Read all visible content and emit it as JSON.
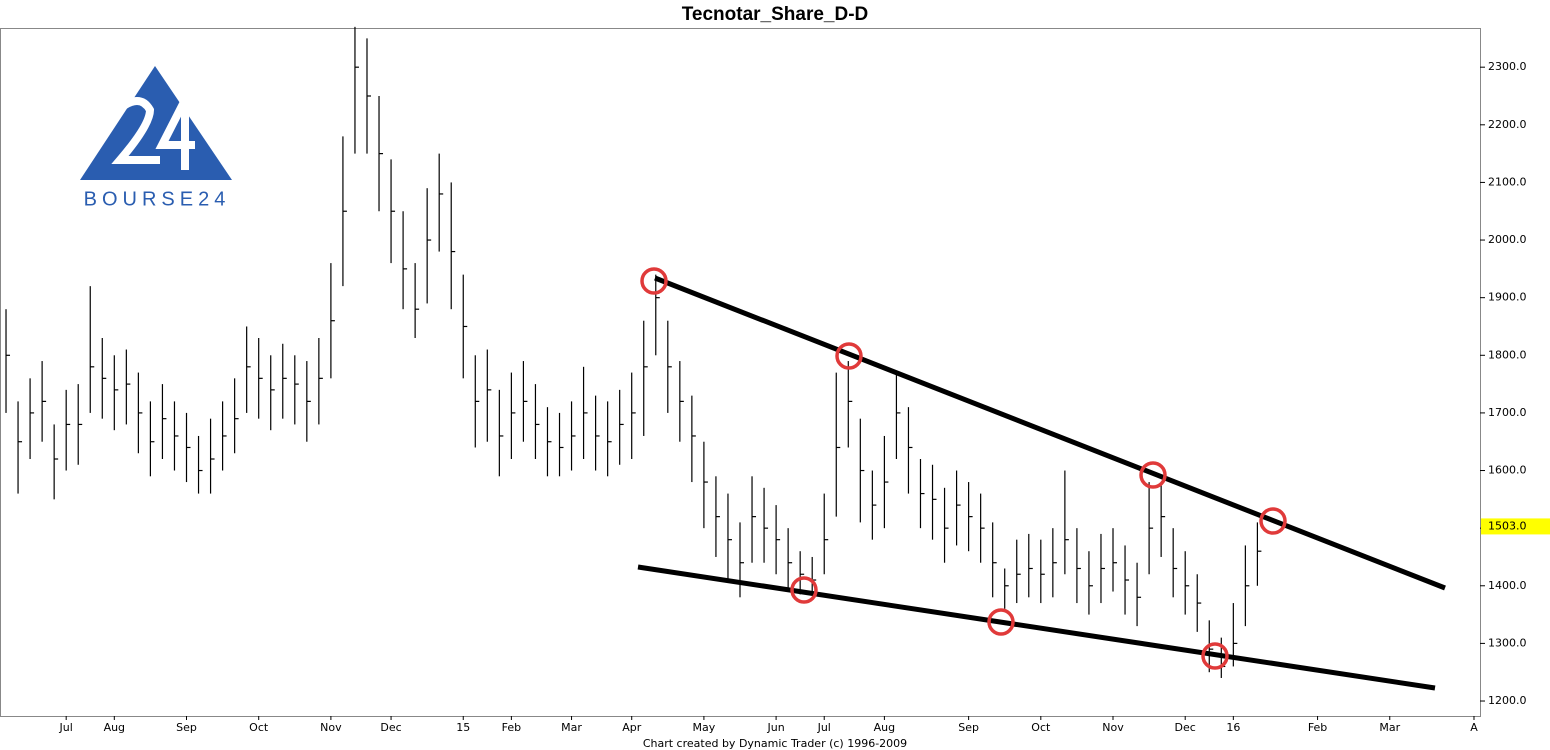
{
  "chart_data": {
    "type": "ohlc",
    "title": "Tecnotar_Share_D-D",
    "footer": "Chart created by Dynamic Trader  (c) 1996-2009",
    "logo_text": "BOURSE24",
    "color": "#000000",
    "categories": [
      null,
      null,
      null,
      null,
      null,
      "Jul",
      null,
      null,
      null,
      "Aug",
      null,
      null,
      null,
      null,
      null,
      "Sep",
      null,
      null,
      null,
      null,
      null,
      "Oct",
      null,
      null,
      null,
      null,
      null,
      "Nov",
      null,
      null,
      null,
      null,
      "Dec",
      null,
      null,
      null,
      null,
      null,
      "15",
      null,
      null,
      null,
      "Feb",
      null,
      null,
      null,
      null,
      "Mar",
      null,
      null,
      null,
      null,
      "Apr",
      null,
      null,
      null,
      null,
      null,
      "May",
      null,
      null,
      null,
      null,
      null,
      "Jun",
      null,
      null,
      null,
      "Jul",
      null,
      null,
      null,
      null,
      "Aug",
      null,
      null,
      null,
      null,
      null,
      null,
      "Sep",
      null,
      null,
      null,
      null,
      null,
      "Oct",
      null,
      null,
      null,
      null,
      null,
      "Nov",
      null,
      null,
      null,
      null,
      null,
      "Dec",
      null,
      null,
      null,
      "16",
      null,
      null,
      null,
      null,
      null,
      null,
      "Feb",
      null,
      null,
      null,
      null,
      null,
      "Mar",
      null,
      null,
      null,
      null,
      null,
      null,
      "A"
    ],
    "high": [
      1880,
      1720,
      1760,
      1790,
      1680,
      1740,
      1750,
      1920,
      1830,
      1800,
      1810,
      1770,
      1720,
      1750,
      1720,
      1700,
      1660,
      1690,
      1720,
      1760,
      1850,
      1830,
      1800,
      1820,
      1800,
      1790,
      1830,
      1960,
      2180,
      2370,
      2350,
      2250,
      2140,
      2050,
      1960,
      2090,
      2150,
      2100,
      1940,
      1800,
      1810,
      1740,
      1770,
      1790,
      1750,
      1710,
      1700,
      1720,
      1780,
      1730,
      1720,
      1740,
      1770,
      1860,
      1940,
      1860,
      1790,
      1730,
      1650,
      1590,
      1560,
      1510,
      1590,
      1570,
      1540,
      1500,
      1460,
      1450,
      1560,
      1770,
      1790,
      1690,
      1600,
      1660,
      1770,
      1710,
      1620,
      1610,
      1570,
      1600,
      1580,
      1560,
      1510,
      1430,
      1480,
      1490,
      1480,
      1500,
      1600,
      1500,
      1460,
      1490,
      1500,
      1470,
      1440,
      1580,
      1580,
      1500,
      1460,
      1420,
      1340,
      1310,
      1370,
      1470,
      1510,
      null,
      null,
      null,
      null,
      null,
      null,
      null,
      null,
      null,
      null,
      null,
      null,
      null,
      null,
      null,
      null,
      null,
      null
    ],
    "low": [
      1700,
      1560,
      1620,
      1650,
      1550,
      1600,
      1610,
      1700,
      1690,
      1670,
      1680,
      1630,
      1590,
      1620,
      1600,
      1580,
      1560,
      1560,
      1600,
      1630,
      1700,
      1690,
      1670,
      1690,
      1680,
      1650,
      1680,
      1760,
      1920,
      2150,
      2150,
      2050,
      1960,
      1880,
      1830,
      1890,
      1980,
      1880,
      1760,
      1640,
      1650,
      1590,
      1620,
      1650,
      1620,
      1590,
      1590,
      1600,
      1620,
      1600,
      1590,
      1610,
      1620,
      1660,
      1800,
      1700,
      1650,
      1580,
      1500,
      1450,
      1410,
      1380,
      1440,
      1440,
      1420,
      1390,
      1385,
      1385,
      1420,
      1520,
      1640,
      1510,
      1480,
      1500,
      1620,
      1560,
      1500,
      1480,
      1440,
      1470,
      1460,
      1440,
      1380,
      1360,
      1370,
      1380,
      1370,
      1380,
      1420,
      1370,
      1350,
      1370,
      1390,
      1350,
      1330,
      1420,
      1450,
      1380,
      1350,
      1320,
      1250,
      1240,
      1260,
      1330,
      1400,
      null,
      null,
      null,
      null,
      null,
      null,
      null,
      null,
      null,
      null,
      null,
      null,
      null,
      null,
      null,
      null,
      null,
      null
    ],
    "close": [
      1800,
      1650,
      1700,
      1720,
      1620,
      1680,
      1680,
      1780,
      1760,
      1740,
      1750,
      1700,
      1650,
      1690,
      1660,
      1640,
      1600,
      1620,
      1660,
      1690,
      1780,
      1760,
      1740,
      1760,
      1750,
      1720,
      1760,
      1860,
      2050,
      2300,
      2250,
      2150,
      2050,
      1950,
      1880,
      2000,
      2080,
      1980,
      1850,
      1720,
      1740,
      1660,
      1700,
      1720,
      1680,
      1650,
      1640,
      1660,
      1700,
      1660,
      1650,
      1680,
      1700,
      1780,
      1900,
      1780,
      1720,
      1660,
      1580,
      1520,
      1480,
      1440,
      1520,
      1500,
      1480,
      1440,
      1420,
      1410,
      1480,
      1640,
      1720,
      1600,
      1540,
      1580,
      1700,
      1640,
      1560,
      1550,
      1500,
      1540,
      1520,
      1500,
      1440,
      1400,
      1420,
      1430,
      1420,
      1440,
      1480,
      1430,
      1400,
      1430,
      1440,
      1410,
      1380,
      1500,
      1520,
      1430,
      1400,
      1370,
      1290,
      1260,
      1300,
      1400,
      1460,
      null,
      null,
      null,
      null,
      null,
      null,
      null,
      null,
      null,
      null,
      null,
      null,
      null,
      null,
      null,
      null,
      null,
      null
    ],
    "ylim": [
      1174,
      2368
    ],
    "yticks": [
      {
        "value": 1200,
        "label": "1200.0"
      },
      {
        "value": 1300,
        "label": "1300.0"
      },
      {
        "value": 1400,
        "label": "1400.0"
      },
      {
        "value": 1500,
        "label": "1500.0"
      },
      {
        "value": 1600,
        "label": "1600.0"
      },
      {
        "value": 1700,
        "label": "1700.0"
      },
      {
        "value": 1800,
        "label": "1800.0"
      },
      {
        "value": 1900,
        "label": "1900.0"
      },
      {
        "value": 2000,
        "label": "2000.0"
      },
      {
        "value": 2100,
        "label": "2100.0"
      },
      {
        "value": 2200,
        "label": "2200.0"
      },
      {
        "value": 2300,
        "label": "2300.0"
      }
    ],
    "last_price": {
      "value": 1503,
      "label": "1503.0"
    },
    "last_price_color": "#ffff00"
  }
}
